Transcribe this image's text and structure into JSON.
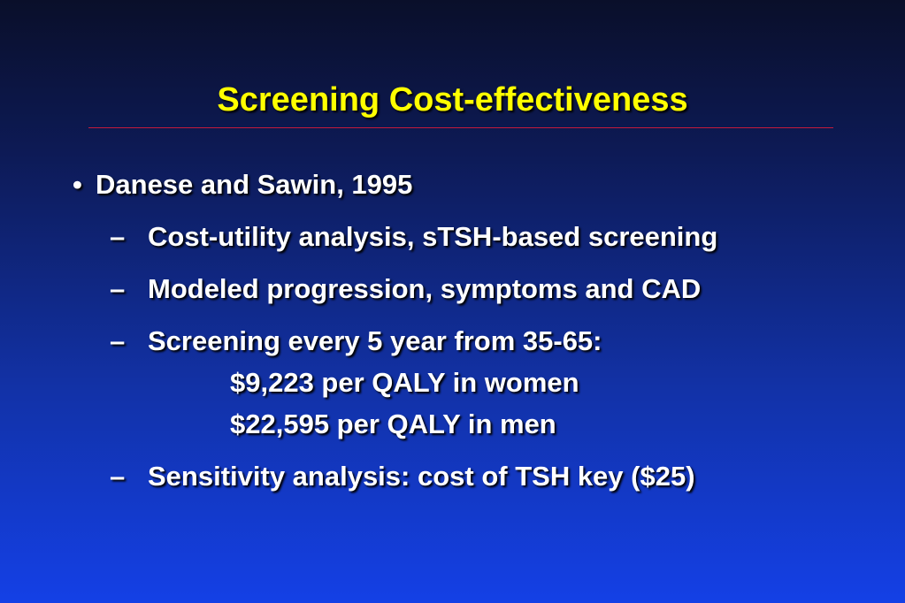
{
  "slide": {
    "title": "Screening Cost-effectiveness",
    "bullet": {
      "marker": "•",
      "text": "Danese and Sawin, 1995"
    },
    "subbullets": [
      {
        "marker": "–",
        "text": "Cost-utility analysis, sTSH-based screening"
      },
      {
        "marker": "–",
        "text": "Modeled progression, symptoms and CAD"
      },
      {
        "marker": "–",
        "text": "Screening every 5 year from 35-65:"
      },
      {
        "marker": "–",
        "text": "Sensitivity analysis: cost of TSH key ($25)"
      }
    ],
    "details": [
      "$9,223 per QALY in women",
      "$22,595 per QALY in men"
    ]
  },
  "colors": {
    "title": "#ffff00",
    "text": "#ffffff",
    "rule": "#c41a3c",
    "background_top": "#0a0f2a",
    "background_bottom": "#1440e6"
  }
}
